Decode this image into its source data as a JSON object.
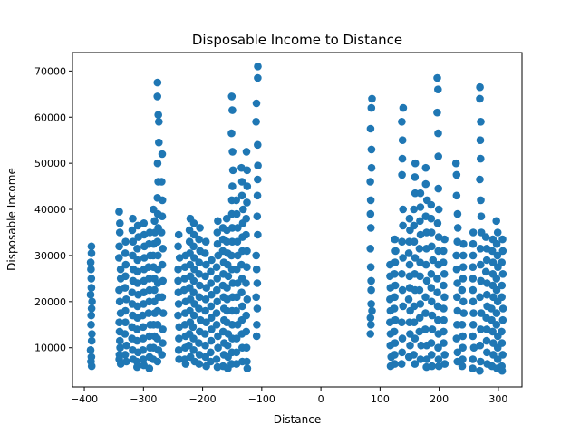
{
  "chart_data": {
    "type": "scatter",
    "title": "Disposable Income to Distance",
    "xlabel": "Distance",
    "ylabel": "Disposable Income",
    "xlim": [
      -420,
      340
    ],
    "ylim": [
      1500,
      74000
    ],
    "xticks": [
      -400,
      -300,
      -200,
      -100,
      0,
      100,
      200,
      300
    ],
    "yticks": [
      10000,
      20000,
      30000,
      40000,
      50000,
      60000,
      70000
    ],
    "grid": false,
    "marker_color": "#1f77b4",
    "columns": [
      {
        "x": -388,
        "values": [
          32000,
          30500,
          28500,
          27000,
          25000,
          23000,
          21500,
          20000,
          18500,
          17000,
          15000,
          13000,
          11500,
          9500,
          8000,
          7000,
          6000
        ]
      },
      {
        "x": -340,
        "values": [
          39500,
          37000,
          35000,
          32000,
          29500,
          27000,
          25000,
          22500,
          20000,
          17500,
          15500,
          13500,
          11500,
          10000,
          8500,
          7500,
          6500
        ]
      },
      {
        "x": -330,
        "values": [
          33000,
          30500,
          28000,
          25500,
          23000,
          20500,
          18000,
          15500,
          13000,
          10500,
          8500,
          7000
        ]
      },
      {
        "x": -318,
        "values": [
          38000,
          35500,
          33000,
          30000,
          27000,
          24500,
          22000,
          19500,
          17000,
          14500,
          12000,
          9500,
          7500
        ]
      },
      {
        "x": -310,
        "values": [
          36500,
          34000,
          31500,
          29000,
          26500,
          24000,
          21500,
          19000,
          16500,
          14000,
          11500,
          9000,
          7000,
          5800
        ]
      },
      {
        "x": -300,
        "values": [
          37000,
          34500,
          32000,
          29500,
          27000,
          24500,
          22000,
          19500,
          17000,
          14500,
          12000,
          9500,
          7500,
          6200
        ]
      },
      {
        "x": -290,
        "values": [
          35000,
          32500,
          30000,
          27500,
          25000,
          22500,
          20000,
          17500,
          15000,
          12500,
          10000,
          8000,
          5500
        ]
      },
      {
        "x": -282,
        "values": [
          40000,
          37500,
          35000,
          32500,
          30000,
          27500,
          25000,
          22500,
          20000,
          17500,
          15000,
          12500,
          10000,
          7500
        ]
      },
      {
        "x": -275,
        "values": [
          67500,
          64500,
          60500,
          59000,
          54500,
          50000,
          46000,
          42500,
          39000,
          36000,
          33000,
          30000,
          27000,
          24000,
          21000,
          18000,
          15000,
          12000,
          9500,
          7000
        ]
      },
      {
        "x": -268,
        "values": [
          52000,
          46000,
          42000,
          38500,
          35000,
          31500,
          28000,
          24500,
          21000,
          17500,
          14000,
          11000,
          8500
        ]
      },
      {
        "x": -240,
        "values": [
          34500,
          32000,
          29500,
          27000,
          24500,
          22000,
          19500,
          17000,
          14500,
          12000,
          9500,
          7500
        ]
      },
      {
        "x": -230,
        "values": [
          30000,
          27500,
          25000,
          22500,
          20000,
          17500,
          15000,
          12500,
          10000,
          7500,
          6500
        ]
      },
      {
        "x": -222,
        "values": [
          38000,
          35500,
          33000,
          30500,
          28000,
          25500,
          23000,
          20500,
          18000,
          15500,
          13000,
          10500,
          8000
        ]
      },
      {
        "x": -215,
        "values": [
          37000,
          34500,
          32000,
          29500,
          27000,
          24500,
          22000,
          19500,
          17000,
          14500,
          12000,
          9500,
          7000
        ]
      },
      {
        "x": -205,
        "values": [
          36000,
          33500,
          31000,
          28500,
          26000,
          23500,
          21000,
          18500,
          16000,
          13500,
          11000,
          8500,
          6500
        ]
      },
      {
        "x": -195,
        "values": [
          33000,
          30500,
          28000,
          25500,
          23000,
          20500,
          18000,
          15500,
          13000,
          10500,
          8000,
          6000
        ]
      },
      {
        "x": -185,
        "values": [
          29000,
          26500,
          24000,
          21500,
          19000,
          16500,
          14000,
          11500,
          9000,
          7000
        ]
      },
      {
        "x": -175,
        "values": [
          37500,
          35000,
          32500,
          30000,
          27500,
          25000,
          22500,
          20000,
          17500,
          15000,
          12500,
          10000,
          7500,
          5800
        ]
      },
      {
        "x": -165,
        "values": [
          36000,
          33500,
          31000,
          28500,
          26000,
          23500,
          21000,
          18500,
          16000,
          13500,
          11000,
          8500,
          6000
        ]
      },
      {
        "x": -158,
        "values": [
          38000,
          35500,
          33000,
          30500,
          28000,
          25500,
          23000,
          20500,
          18000,
          15500,
          13000,
          10500,
          8000,
          5500
        ]
      },
      {
        "x": -150,
        "values": [
          64500,
          61500,
          56500,
          52500,
          48500,
          45000,
          42000,
          39000,
          36000,
          33000,
          30000,
          27000,
          24000,
          21000,
          18000,
          15000,
          12000,
          9000,
          6500
        ]
      },
      {
        "x": -142,
        "values": [
          42000,
          39000,
          36000,
          33000,
          30000,
          27000,
          24000,
          21000,
          18000,
          15000,
          12000,
          9000,
          6500
        ]
      },
      {
        "x": -133,
        "values": [
          49000,
          46000,
          43000,
          40000,
          37000,
          34000,
          31000,
          28000,
          25000,
          22000,
          19000,
          16000,
          13000,
          10000,
          7000
        ]
      },
      {
        "x": -125,
        "values": [
          52500,
          48500,
          45000,
          41500,
          38000,
          34500,
          31000,
          27500,
          24000,
          20500,
          17000,
          13500,
          10000,
          7000,
          5500
        ]
      },
      {
        "x": -108,
        "values": [
          71000,
          68500,
          63000,
          59000,
          54000,
          49500,
          46500,
          43000,
          38500,
          34500,
          30000,
          27000,
          24000,
          21000,
          18500,
          15000,
          12500
        ]
      },
      {
        "x": 85,
        "values": [
          64000,
          62000,
          57500,
          53000,
          49000,
          46000,
          42000,
          39000,
          36000,
          31500,
          27500,
          24500,
          22500,
          19500,
          18000,
          16500,
          15000,
          13000
        ]
      },
      {
        "x": 118,
        "values": [
          28000,
          25500,
          23000,
          20500,
          18000,
          15500,
          13000,
          10500,
          8000,
          6000
        ]
      },
      {
        "x": 125,
        "values": [
          33500,
          31000,
          28500,
          26000,
          23500,
          21000,
          18500,
          16000,
          13500,
          11000,
          8500,
          6500
        ]
      },
      {
        "x": 138,
        "values": [
          62000,
          59000,
          55000,
          51000,
          47500,
          40000,
          36500,
          33000,
          29500,
          26000,
          22500,
          19000,
          15500,
          12000,
          9000,
          6500
        ]
      },
      {
        "x": 150,
        "values": [
          38000,
          35500,
          33000,
          30500,
          28000,
          25500,
          23000,
          20500,
          18000,
          15500,
          13000,
          10500,
          8000
        ]
      },
      {
        "x": 158,
        "values": [
          50000,
          47000,
          43500,
          40000,
          36500,
          33000,
          29500,
          26000,
          22500,
          19000,
          15500,
          12000,
          8500,
          6500
        ]
      },
      {
        "x": 168,
        "values": [
          43500,
          40500,
          37500,
          34500,
          31500,
          28500,
          25500,
          22500,
          19500,
          16500,
          13500,
          10500,
          7500
        ]
      },
      {
        "x": 178,
        "values": [
          49000,
          45500,
          42000,
          38500,
          35000,
          31500,
          28000,
          24500,
          21000,
          17500,
          14000,
          10500,
          7500,
          5800
        ]
      },
      {
        "x": 188,
        "values": [
          41000,
          38000,
          35000,
          32000,
          29000,
          26000,
          23000,
          20000,
          17000,
          14000,
          11000,
          8500,
          6000
        ]
      },
      {
        "x": 198,
        "values": [
          68500,
          66000,
          61000,
          56500,
          51500,
          44500,
          40000,
          37000,
          34000,
          31000,
          28000,
          25000,
          22000,
          19000,
          16000,
          13000,
          10000,
          7500,
          6000
        ]
      },
      {
        "x": 208,
        "values": [
          33500,
          31000,
          28500,
          26000,
          23500,
          21000,
          18500,
          16000,
          13500,
          11000,
          8500,
          6500
        ]
      },
      {
        "x": 230,
        "values": [
          50000,
          47500,
          43000,
          39000,
          36000,
          33000,
          30000,
          27000,
          24000,
          21000,
          18000,
          15000,
          12000,
          9000,
          7000
        ]
      },
      {
        "x": 240,
        "values": [
          32500,
          30000,
          27500,
          25000,
          22500,
          20000,
          17500,
          15000,
          12500,
          10000,
          7500,
          6000
        ]
      },
      {
        "x": 258,
        "values": [
          35000,
          32500,
          30000,
          27500,
          25000,
          22500,
          20000,
          17500,
          15000,
          12500,
          10000,
          7500,
          5500
        ]
      },
      {
        "x": 270,
        "values": [
          66500,
          64000,
          59000,
          55000,
          51000,
          46500,
          42000,
          38500,
          35000,
          31500,
          28000,
          24500,
          21000,
          17500,
          14000,
          10500,
          7000,
          5000
        ]
      },
      {
        "x": 280,
        "values": [
          34000,
          31500,
          29000,
          26500,
          24000,
          21500,
          19000,
          16500,
          14000,
          11500,
          9000,
          6500
        ]
      },
      {
        "x": 290,
        "values": [
          33500,
          31000,
          28500,
          26000,
          23500,
          21000,
          18500,
          16000,
          13500,
          11000,
          8500,
          6000
        ]
      },
      {
        "x": 298,
        "values": [
          37500,
          35000,
          32500,
          30000,
          27500,
          25000,
          22500,
          20000,
          17500,
          15000,
          12500,
          10000,
          7500,
          5500
        ]
      },
      {
        "x": 307,
        "values": [
          33500,
          31000,
          28500,
          26000,
          23500,
          21000,
          18500,
          16000,
          13500,
          11000,
          8500,
          6000,
          5000
        ]
      }
    ]
  }
}
